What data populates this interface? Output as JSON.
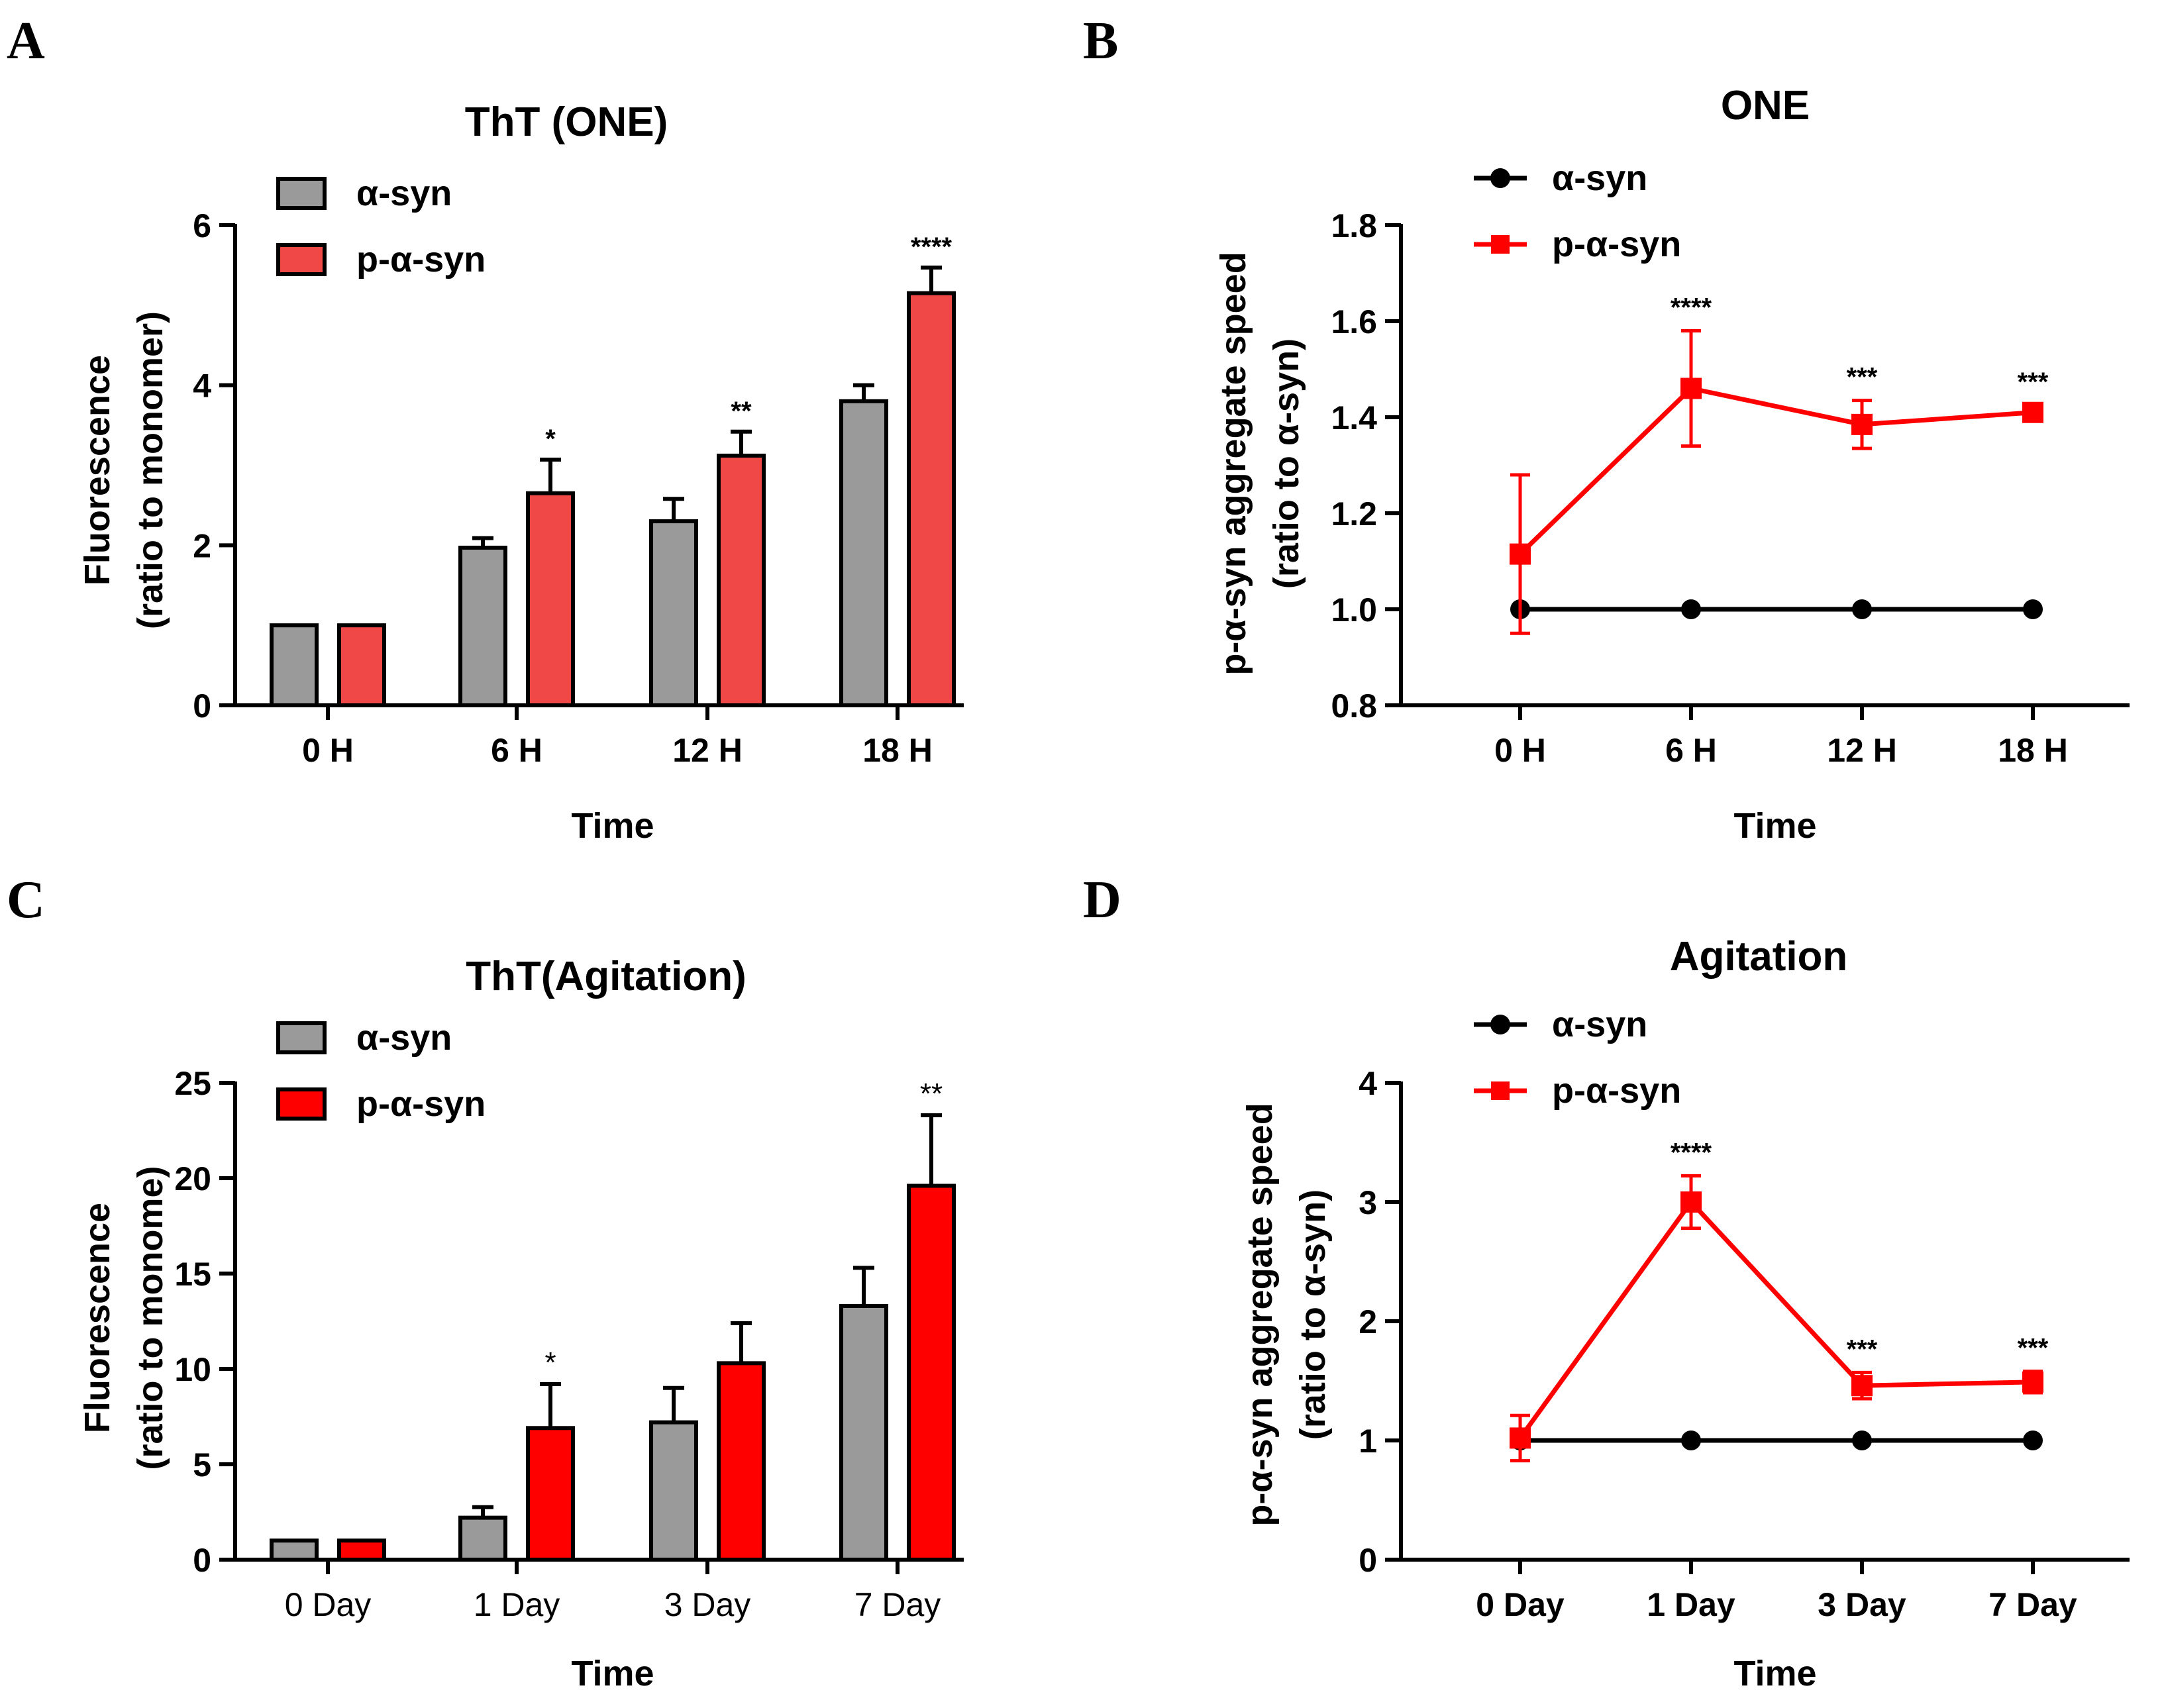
{
  "colors": {
    "gray": "#9a9a9a",
    "red_light": "#f04747",
    "red": "#ff0000",
    "black": "#000000"
  },
  "chart_data": [
    {
      "panel": "A",
      "type": "bar",
      "title": "ThT (ONE)",
      "xlabel": "Time",
      "ylabel": [
        "Fluorescence",
        "(ratio to monomer)"
      ],
      "categories": [
        "0 H",
        "6 H",
        "12 H",
        "18 H"
      ],
      "ylim": [
        0,
        6
      ],
      "yticks": [
        0,
        2,
        4,
        6
      ],
      "legend_position": "top-left",
      "tick_weight": "bold",
      "series": [
        {
          "name": "α-syn",
          "color_key": "gray",
          "values": [
            1.0,
            1.97,
            2.3,
            3.8
          ],
          "errors": [
            0,
            0.12,
            0.28,
            0.2
          ]
        },
        {
          "name": "p-α-syn",
          "color_key": "red_light",
          "values": [
            1.0,
            2.65,
            3.12,
            5.15
          ],
          "errors": [
            0,
            0.42,
            0.3,
            0.32
          ]
        }
      ],
      "significance": [
        "",
        "*",
        "**",
        "****"
      ]
    },
    {
      "panel": "B",
      "type": "line",
      "title": "ONE",
      "xlabel": "Time",
      "ylabel": [
        "p-α-syn aggregate speed",
        "(ratio to α-syn)"
      ],
      "categories": [
        "0 H",
        "6 H",
        "12 H",
        "18 H"
      ],
      "ylim": [
        0.8,
        1.8
      ],
      "yticks": [
        "0.8",
        "1.0",
        "1.2",
        "1.4",
        "1.6",
        "1.8"
      ],
      "legend_position": "top-left",
      "series": [
        {
          "name": "α-syn",
          "marker": "circle",
          "color_key": "black",
          "values": [
            1.0,
            1.0,
            1.0,
            1.0
          ],
          "errors": [
            0,
            0,
            0,
            0
          ]
        },
        {
          "name": "p-α-syn",
          "marker": "square",
          "color_key": "red",
          "values": [
            1.115,
            1.46,
            1.385,
            1.41
          ],
          "errors": [
            0.165,
            0.12,
            0.05,
            0.015
          ]
        }
      ],
      "significance": [
        "",
        "****",
        "***",
        "***"
      ]
    },
    {
      "panel": "C",
      "type": "bar",
      "title": "ThT(Agitation)",
      "xlabel": "Time",
      "ylabel": [
        "Fluorescence",
        "(ratio to monome)"
      ],
      "categories": [
        "0 Day",
        "1 Day",
        "3 Day",
        "7 Day"
      ],
      "ylim": [
        0,
        25
      ],
      "yticks": [
        0,
        5,
        10,
        15,
        20,
        25
      ],
      "legend_position": "top-left",
      "tick_weight": "normal",
      "series": [
        {
          "name": "α-syn",
          "color_key": "gray",
          "values": [
            1.0,
            2.2,
            7.2,
            13.3
          ],
          "errors": [
            0,
            0.55,
            1.8,
            2.0
          ]
        },
        {
          "name": "p-α-syn",
          "color_key": "red",
          "values": [
            1.0,
            6.9,
            10.3,
            19.6
          ],
          "errors": [
            0,
            2.3,
            2.1,
            3.7
          ]
        }
      ],
      "significance": [
        "",
        "*",
        "",
        "**"
      ]
    },
    {
      "panel": "D",
      "type": "line",
      "title": "Agitation",
      "xlabel": "Time",
      "ylabel": [
        "p-α-syn aggregate speed",
        "(ratio to α-syn)"
      ],
      "categories": [
        "0 Day",
        "1 Day",
        "3 Day",
        "7 Day"
      ],
      "ylim": [
        0,
        4
      ],
      "yticks": [
        "0",
        "1",
        "2",
        "3",
        "4"
      ],
      "legend_position": "top-left",
      "series": [
        {
          "name": "α-syn",
          "marker": "circle",
          "color_key": "black",
          "values": [
            1.0,
            1.0,
            1.0,
            1.0
          ],
          "errors": [
            0,
            0,
            0,
            0
          ]
        },
        {
          "name": "p-α-syn",
          "marker": "square",
          "color_key": "red",
          "values": [
            1.02,
            3.0,
            1.46,
            1.49
          ],
          "errors": [
            0.19,
            0.22,
            0.11,
            0.09
          ]
        }
      ],
      "significance": [
        "",
        "****",
        "***",
        "***"
      ]
    }
  ]
}
